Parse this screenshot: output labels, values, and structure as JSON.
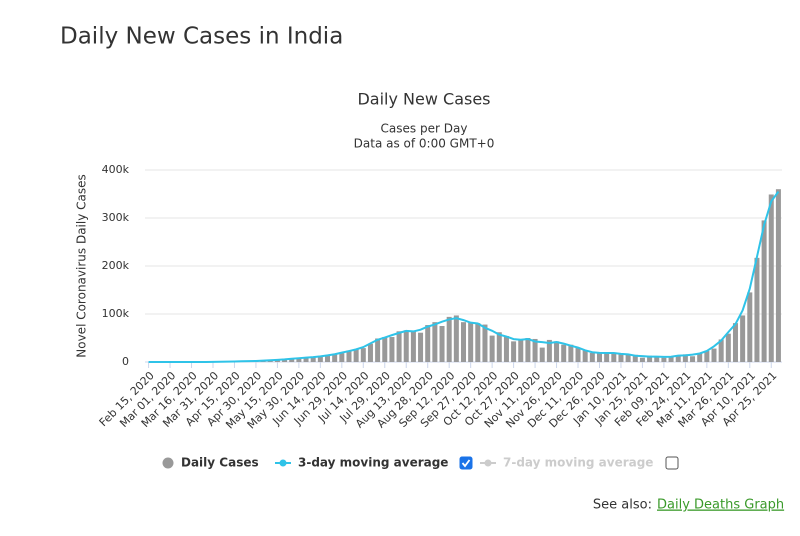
{
  "page": {
    "heading": "Daily New Cases in India",
    "see_also_prefix": "See also:",
    "see_also_link": "Daily Deaths Graph"
  },
  "chart_data": {
    "type": "bar",
    "title": "Daily New Cases",
    "subtitle": "Cases per Day",
    "subtitle2": "Data as of 0:00 GMT+0",
    "y_label": "Novel Coronavirus Daily Cases",
    "categories": [
      "Feb 15, 2020",
      null,
      null,
      "Mar 01, 2020",
      null,
      null,
      "Mar 16, 2020",
      null,
      null,
      "Mar 31, 2020",
      null,
      null,
      "Apr 15, 2020",
      null,
      null,
      "Apr 30, 2020",
      null,
      null,
      "May 15, 2020",
      null,
      null,
      "May 30, 2020",
      null,
      null,
      "Jun 14, 2020",
      null,
      null,
      "Jun 29, 2020",
      null,
      null,
      "Jul 14, 2020",
      null,
      null,
      "Jul 29, 2020",
      null,
      null,
      "Aug 13, 2020",
      null,
      null,
      "Aug 28, 2020",
      null,
      null,
      "Sep 12, 2020",
      null,
      null,
      "Sep 27, 2020",
      null,
      null,
      "Oct 12, 2020",
      null,
      null,
      "Oct 27, 2020",
      null,
      null,
      "Nov 11, 2020",
      null,
      null,
      "Nov 26, 2020",
      null,
      null,
      "Dec 11, 2020",
      null,
      null,
      "Dec 26, 2020",
      null,
      null,
      "Jan 10, 2021",
      null,
      null,
      "Jan 25, 2021",
      null,
      null,
      "Feb 09, 2021",
      null,
      null,
      "Feb 24, 2021",
      null,
      null,
      "Mar 11, 2021",
      null,
      null,
      "Mar 26, 2021",
      null,
      null,
      "Apr 10, 2021",
      null,
      null,
      "Apr 25, 2021",
      null
    ],
    "series": [
      {
        "name": "Daily Cases",
        "color": "#999999",
        "checked": true,
        "values": [
          0,
          0,
          0,
          0,
          5,
          10,
          20,
          80,
          90,
          300,
          500,
          900,
          1000,
          1500,
          1800,
          1800,
          3000,
          4000,
          4000,
          5600,
          6500,
          8000,
          9300,
          9900,
          11500,
          14000,
          16000,
          18500,
          24000,
          26000,
          29000,
          38000,
          49000,
          52000,
          52000,
          64000,
          66000,
          64000,
          61000,
          77000,
          83000,
          75000,
          94000,
          97000,
          83000,
          82000,
          81000,
          78000,
          55000,
          62000,
          54000,
          43000,
          46000,
          50000,
          48000,
          30000,
          46000,
          43000,
          36000,
          36000,
          30000,
          24000,
          19000,
          18000,
          20000,
          18000,
          18000,
          15000,
          15000,
          9000,
          13000,
          12000,
          9000,
          11000,
          13000,
          16000,
          12000,
          18000,
          23000,
          28000,
          47000,
          59000,
          81000,
          97000,
          145000,
          217000,
          295000,
          349000,
          360000
        ]
      },
      {
        "name": "3-day moving average",
        "color": "#2fc3e8",
        "checked": true,
        "values": [
          0,
          0,
          0,
          2,
          5,
          12,
          35,
          63,
          130,
          300,
          570,
          800,
          1130,
          1430,
          1700,
          2200,
          2930,
          3670,
          4530,
          5370,
          6700,
          7930,
          9070,
          10200,
          11800,
          13800,
          16200,
          19500,
          22800,
          26300,
          31000,
          38700,
          46300,
          51000,
          56000,
          60700,
          64700,
          63700,
          67300,
          73700,
          78300,
          84000,
          88700,
          91300,
          87300,
          82000,
          80300,
          71300,
          65000,
          57000,
          53000,
          47700,
          46300,
          48000,
          42700,
          41300,
          39700,
          41700,
          38300,
          34000,
          30000,
          24300,
          20300,
          19000,
          18700,
          18700,
          17000,
          16000,
          13000,
          12300,
          11300,
          11300,
          10700,
          11000,
          13300,
          13700,
          15300,
          17700,
          23000,
          32700,
          44700,
          62300,
          79000,
          107700,
          153000,
          219000,
          285700,
          334700,
          355000
        ]
      }
    ],
    "hidden_series": [
      {
        "name": "7-day moving average",
        "color": "#cccccc",
        "checked": false
      }
    ],
    "ylim": [
      0,
      400000
    ],
    "yticks": [
      {
        "value": 0,
        "label": "0"
      },
      {
        "value": 100000,
        "label": "100k"
      },
      {
        "value": 200000,
        "label": "200k"
      },
      {
        "value": 300000,
        "label": "300k"
      },
      {
        "value": 400000,
        "label": "400k"
      }
    ],
    "grid": true
  }
}
